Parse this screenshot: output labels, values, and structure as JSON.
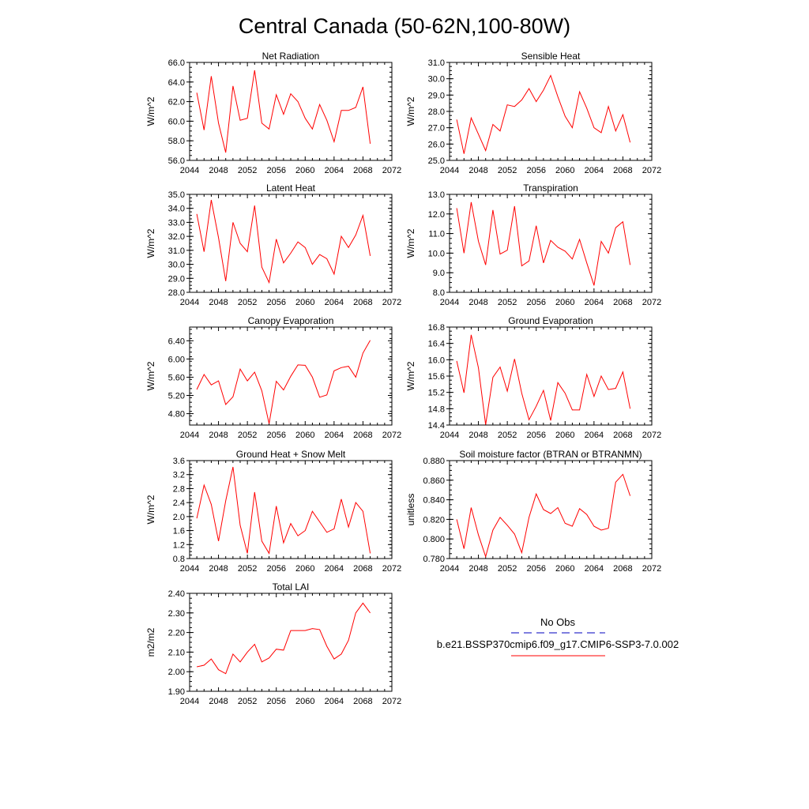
{
  "figure": {
    "title": "Central Canada (50-62N,100-80W)",
    "colors": {
      "model": "#ff0000",
      "obs": "#3333cc",
      "axis": "#000000"
    }
  },
  "legend": {
    "obs_label": "No Obs",
    "model_label": "b.e21.BSSP370cmip6.f09_g17.CMIP6-SSP3-7.0.002"
  },
  "chart_data": [
    {
      "type": "line",
      "title": "Net Radiation",
      "ylabel": "W/m^2",
      "xlim": [
        2044,
        2072
      ],
      "ylim": [
        56.0,
        66.0
      ],
      "xticks": [
        2044,
        2048,
        2052,
        2056,
        2060,
        2064,
        2068,
        2072
      ],
      "xtick_labels": [
        "2044",
        "2048",
        "2052",
        "2056",
        "2060",
        "2064",
        "2068",
        "2072"
      ],
      "yticks": [
        56.0,
        58.0,
        60.0,
        62.0,
        64.0,
        66.0
      ],
      "ytick_labels": [
        "56.0",
        "58.0",
        "60.0",
        "62.0",
        "64.0",
        "66.0"
      ],
      "series": [
        {
          "x": [
            2045,
            2046,
            2047,
            2048,
            2049,
            2050,
            2051,
            2052,
            2053,
            2054,
            2055,
            2056,
            2057,
            2058,
            2059,
            2060,
            2061,
            2062,
            2063,
            2064,
            2065,
            2066,
            2067,
            2068,
            2069
          ],
          "y": [
            62.9,
            59.1,
            64.6,
            59.8,
            56.8,
            63.6,
            60.1,
            60.3,
            65.2,
            59.8,
            59.2,
            62.7,
            60.7,
            62.8,
            62.0,
            60.3,
            59.2,
            61.7,
            60.1,
            57.9,
            61.1,
            61.1,
            61.4,
            63.5,
            57.7
          ]
        }
      ]
    },
    {
      "type": "line",
      "title": "Sensible Heat",
      "ylabel": "W/m^2",
      "xlim": [
        2044,
        2072
      ],
      "ylim": [
        25.0,
        31.0
      ],
      "xticks": [
        2044,
        2048,
        2052,
        2056,
        2060,
        2064,
        2068,
        2072
      ],
      "xtick_labels": [
        "2044",
        "2048",
        "2052",
        "2056",
        "2060",
        "2064",
        "2068",
        "2072"
      ],
      "yticks": [
        25.0,
        26.0,
        27.0,
        28.0,
        29.0,
        30.0,
        31.0
      ],
      "ytick_labels": [
        "25.0",
        "26.0",
        "27.0",
        "28.0",
        "29.0",
        "30.0",
        "31.0"
      ],
      "series": [
        {
          "x": [
            2045,
            2046,
            2047,
            2048,
            2049,
            2050,
            2051,
            2052,
            2053,
            2054,
            2055,
            2056,
            2057,
            2058,
            2059,
            2060,
            2061,
            2062,
            2063,
            2064,
            2065,
            2066,
            2067,
            2068,
            2069
          ],
          "y": [
            27.5,
            25.4,
            27.6,
            26.6,
            25.6,
            27.2,
            26.8,
            28.4,
            28.3,
            28.7,
            29.4,
            28.6,
            29.3,
            30.2,
            28.9,
            27.7,
            27.0,
            29.2,
            28.2,
            27.0,
            26.7,
            28.3,
            26.8,
            27.8,
            26.1
          ]
        }
      ]
    },
    {
      "type": "line",
      "title": "Latent Heat",
      "ylabel": "W/m^2",
      "xlim": [
        2044,
        2072
      ],
      "ylim": [
        28.0,
        35.0
      ],
      "xticks": [
        2044,
        2048,
        2052,
        2056,
        2060,
        2064,
        2068,
        2072
      ],
      "xtick_labels": [
        "2044",
        "2048",
        "2052",
        "2056",
        "2060",
        "2064",
        "2068",
        "2072"
      ],
      "yticks": [
        28.0,
        29.0,
        30.0,
        31.0,
        32.0,
        33.0,
        34.0,
        35.0
      ],
      "ytick_labels": [
        "28.0",
        "29.0",
        "30.0",
        "31.0",
        "32.0",
        "33.0",
        "34.0",
        "35.0"
      ],
      "series": [
        {
          "x": [
            2045,
            2046,
            2047,
            2048,
            2049,
            2050,
            2051,
            2052,
            2053,
            2054,
            2055,
            2056,
            2057,
            2058,
            2059,
            2060,
            2061,
            2062,
            2063,
            2064,
            2065,
            2066,
            2067,
            2068,
            2069
          ],
          "y": [
            33.6,
            30.9,
            34.6,
            31.9,
            28.8,
            33.0,
            31.5,
            30.9,
            34.2,
            29.8,
            28.7,
            31.8,
            30.1,
            30.8,
            31.6,
            31.2,
            30.0,
            30.7,
            30.4,
            29.3,
            32.0,
            31.2,
            32.1,
            33.5,
            30.6
          ]
        }
      ]
    },
    {
      "type": "line",
      "title": "Transpiration",
      "ylabel": "W/m^2",
      "xlim": [
        2044,
        2072
      ],
      "ylim": [
        8.0,
        13.0
      ],
      "xticks": [
        2044,
        2048,
        2052,
        2056,
        2060,
        2064,
        2068,
        2072
      ],
      "xtick_labels": [
        "2044",
        "2048",
        "2052",
        "2056",
        "2060",
        "2064",
        "2068",
        "2072"
      ],
      "yticks": [
        8.0,
        9.0,
        10.0,
        11.0,
        12.0,
        13.0
      ],
      "ytick_labels": [
        "8.0",
        "9.0",
        "10.0",
        "11.0",
        "12.0",
        "13.0"
      ],
      "series": [
        {
          "x": [
            2045,
            2046,
            2047,
            2048,
            2049,
            2050,
            2051,
            2052,
            2053,
            2054,
            2055,
            2056,
            2057,
            2058,
            2059,
            2060,
            2061,
            2062,
            2063,
            2064,
            2065,
            2066,
            2067,
            2068,
            2069
          ],
          "y": [
            12.3,
            10.0,
            12.6,
            10.6,
            9.4,
            12.2,
            9.95,
            10.15,
            12.4,
            9.35,
            9.6,
            11.4,
            9.5,
            10.65,
            10.3,
            10.1,
            9.7,
            10.7,
            9.5,
            8.35,
            10.6,
            10.0,
            11.3,
            11.6,
            9.4
          ]
        }
      ]
    },
    {
      "type": "line",
      "title": "Canopy Evaporation",
      "ylabel": "W/m^2",
      "xlim": [
        2044,
        2072
      ],
      "ylim": [
        4.55,
        6.7
      ],
      "xticks": [
        2044,
        2048,
        2052,
        2056,
        2060,
        2064,
        2068,
        2072
      ],
      "xtick_labels": [
        "2044",
        "2048",
        "2052",
        "2056",
        "2060",
        "2064",
        "2068",
        "2072"
      ],
      "yticks": [
        4.8,
        5.2,
        5.6,
        6.0,
        6.4
      ],
      "ytick_labels": [
        "4.80",
        "5.20",
        "5.60",
        "6.00",
        "6.40"
      ],
      "series": [
        {
          "x": [
            2045,
            2046,
            2047,
            2048,
            2049,
            2050,
            2051,
            2052,
            2053,
            2054,
            2055,
            2056,
            2057,
            2058,
            2059,
            2060,
            2061,
            2062,
            2063,
            2064,
            2065,
            2066,
            2067,
            2068,
            2069
          ],
          "y": [
            5.33,
            5.66,
            5.43,
            5.52,
            5.0,
            5.17,
            5.78,
            5.52,
            5.71,
            5.3,
            4.58,
            5.51,
            5.32,
            5.62,
            5.87,
            5.86,
            5.6,
            5.16,
            5.21,
            5.74,
            5.81,
            5.84,
            5.6,
            6.13,
            6.41
          ]
        }
      ]
    },
    {
      "type": "line",
      "title": "Ground Evaporation",
      "ylabel": "W/m^2",
      "xlim": [
        2044,
        2072
      ],
      "ylim": [
        14.4,
        16.8
      ],
      "xticks": [
        2044,
        2048,
        2052,
        2056,
        2060,
        2064,
        2068,
        2072
      ],
      "xtick_labels": [
        "2044",
        "2048",
        "2052",
        "2056",
        "2060",
        "2064",
        "2068",
        "2072"
      ],
      "yticks": [
        14.4,
        14.8,
        15.2,
        15.6,
        16.0,
        16.4,
        16.8
      ],
      "ytick_labels": [
        "14.4",
        "14.8",
        "15.2",
        "15.6",
        "16.0",
        "16.4",
        "16.8"
      ],
      "series": [
        {
          "x": [
            2045,
            2046,
            2047,
            2048,
            2049,
            2050,
            2051,
            2052,
            2053,
            2054,
            2055,
            2056,
            2057,
            2058,
            2059,
            2060,
            2061,
            2062,
            2063,
            2064,
            2065,
            2066,
            2067,
            2068,
            2069
          ],
          "y": [
            15.97,
            15.19,
            16.61,
            15.8,
            14.41,
            15.57,
            15.82,
            15.23,
            16.02,
            15.18,
            14.53,
            14.86,
            15.25,
            14.51,
            15.44,
            15.18,
            14.77,
            14.77,
            15.64,
            15.1,
            15.6,
            15.27,
            15.3,
            15.7,
            14.8
          ]
        }
      ]
    },
    {
      "type": "line",
      "title": "Ground Heat + Snow Melt",
      "ylabel": "W/m^2",
      "xlim": [
        2044,
        2072
      ],
      "ylim": [
        0.8,
        3.6
      ],
      "xticks": [
        2044,
        2048,
        2052,
        2056,
        2060,
        2064,
        2068,
        2072
      ],
      "xtick_labels": [
        "2044",
        "2048",
        "2052",
        "2056",
        "2060",
        "2064",
        "2068",
        "2072"
      ],
      "yticks": [
        0.8,
        1.2,
        1.6,
        2.0,
        2.4,
        2.8,
        3.2,
        3.6
      ],
      "ytick_labels": [
        "0.8",
        "1.2",
        "1.6",
        "2.0",
        "2.4",
        "2.8",
        "3.2",
        "3.6"
      ],
      "series": [
        {
          "x": [
            2045,
            2046,
            2047,
            2048,
            2049,
            2050,
            2051,
            2052,
            2053,
            2054,
            2055,
            2056,
            2057,
            2058,
            2059,
            2060,
            2061,
            2062,
            2063,
            2064,
            2065,
            2066,
            2067,
            2068,
            2069
          ],
          "y": [
            1.95,
            2.9,
            2.35,
            1.3,
            2.45,
            3.42,
            1.75,
            0.95,
            2.7,
            1.3,
            0.95,
            2.3,
            1.25,
            1.8,
            1.45,
            1.6,
            2.15,
            1.85,
            1.55,
            1.65,
            2.5,
            1.7,
            2.4,
            2.15,
            0.95
          ]
        }
      ]
    },
    {
      "type": "line",
      "title": "Soil moisture factor (BTRAN or BTRANMN)",
      "ylabel": "unitless",
      "xlim": [
        2044,
        2072
      ],
      "ylim": [
        0.78,
        0.88
      ],
      "xticks": [
        2044,
        2048,
        2052,
        2056,
        2060,
        2064,
        2068,
        2072
      ],
      "xtick_labels": [
        "2044",
        "2048",
        "2052",
        "2056",
        "2060",
        "2064",
        "2068",
        "2072"
      ],
      "yticks": [
        0.78,
        0.8,
        0.82,
        0.84,
        0.86,
        0.88
      ],
      "ytick_labels": [
        "0.780",
        "0.800",
        "0.820",
        "0.840",
        "0.860",
        "0.880"
      ],
      "series": [
        {
          "x": [
            2045,
            2046,
            2047,
            2048,
            2049,
            2050,
            2051,
            2052,
            2053,
            2054,
            2055,
            2056,
            2057,
            2058,
            2059,
            2060,
            2061,
            2062,
            2063,
            2064,
            2065,
            2066,
            2067,
            2068,
            2069
          ],
          "y": [
            0.82,
            0.79,
            0.832,
            0.804,
            0.782,
            0.809,
            0.822,
            0.814,
            0.805,
            0.786,
            0.822,
            0.846,
            0.83,
            0.826,
            0.832,
            0.816,
            0.813,
            0.831,
            0.825,
            0.813,
            0.809,
            0.811,
            0.858,
            0.866,
            0.844
          ]
        }
      ]
    },
    {
      "type": "line",
      "title": "Total LAI",
      "ylabel": "m2/m2",
      "xlim": [
        2044,
        2072
      ],
      "ylim": [
        1.9,
        2.4
      ],
      "xticks": [
        2044,
        2048,
        2052,
        2056,
        2060,
        2064,
        2068,
        2072
      ],
      "xtick_labels": [
        "2044",
        "2048",
        "2052",
        "2056",
        "2060",
        "2064",
        "2068",
        "2072"
      ],
      "yticks": [
        1.9,
        2.0,
        2.1,
        2.2,
        2.3,
        2.4
      ],
      "ytick_labels": [
        "1.90",
        "2.00",
        "2.10",
        "2.20",
        "2.30",
        "2.40"
      ],
      "series": [
        {
          "x": [
            2045,
            2046,
            2047,
            2048,
            2049,
            2050,
            2051,
            2052,
            2053,
            2054,
            2055,
            2056,
            2057,
            2058,
            2059,
            2060,
            2061,
            2062,
            2063,
            2064,
            2065,
            2066,
            2067,
            2068,
            2069
          ],
          "y": [
            2.025,
            2.033,
            2.065,
            2.01,
            1.99,
            2.09,
            2.05,
            2.1,
            2.14,
            2.05,
            2.07,
            2.115,
            2.11,
            2.21,
            2.21,
            2.21,
            2.22,
            2.215,
            2.13,
            2.065,
            2.09,
            2.16,
            2.3,
            2.35,
            2.3
          ]
        }
      ]
    }
  ]
}
